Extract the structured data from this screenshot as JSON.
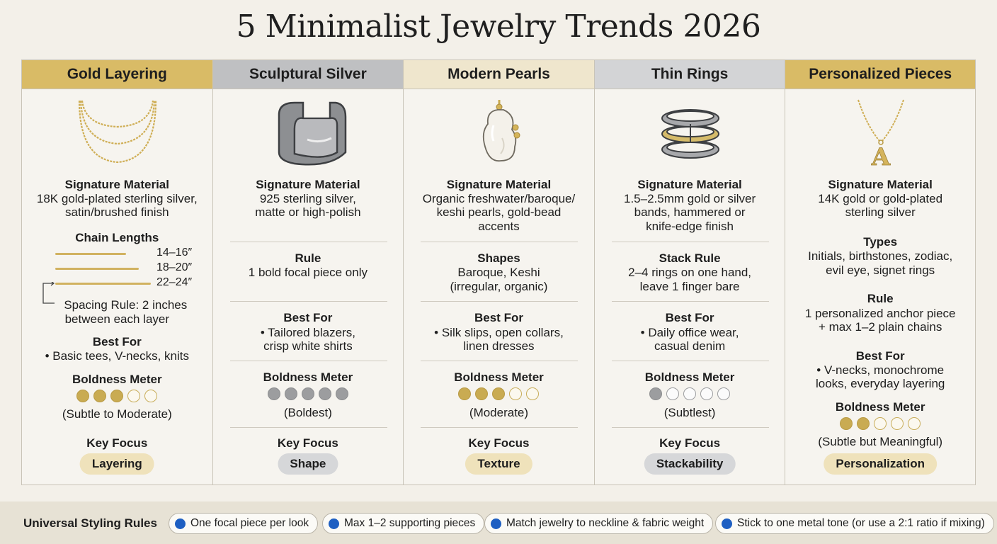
{
  "title": "5 Minimalist Jewelry Trends 2026",
  "columns": [
    {
      "header": "Gold Layering",
      "material_label": "Signature Material",
      "material_lines": [
        "18K gold-plated sterling silver,",
        "satin/brushed finish"
      ],
      "chain_title": "Chain Lengths",
      "chain_lengths": [
        "14–16″",
        "18–20″",
        "22–24″"
      ],
      "spacing_lines": [
        "Spacing Rule: 2 inches",
        "between each layer"
      ],
      "bestfor_label": "Best For",
      "bestfor_lines": [
        "• Basic tees, V-necks, knits"
      ],
      "meter_label": "Boldness Meter",
      "boldness": 3,
      "meter_text": "(Subtle to Moderate)",
      "focus_label": "Key Focus",
      "focus": "Layering"
    },
    {
      "header": "Sculptural Silver",
      "material_label": "Signature Material",
      "material_lines": [
        "925 sterling silver,",
        "matte or high-polish"
      ],
      "rule_label": "Rule",
      "rule_lines": [
        "1 bold focal piece only"
      ],
      "bestfor_label": "Best For",
      "bestfor_lines": [
        "• Tailored blazers,",
        "crisp white shirts"
      ],
      "meter_label": "Boldness Meter",
      "boldness": 5,
      "meter_text": "(Boldest)",
      "focus_label": "Key Focus",
      "focus": "Shape"
    },
    {
      "header": "Modern Pearls",
      "material_label": "Signature Material",
      "material_lines": [
        "Organic freshwater/baroque/",
        "keshi pearls, gold-bead",
        "accents"
      ],
      "rule_label": "Shapes",
      "rule_lines": [
        "Baroque, Keshi",
        "(irregular, organic)"
      ],
      "bestfor_label": "Best For",
      "bestfor_lines": [
        "• Silk slips, open collars,",
        "linen dresses"
      ],
      "meter_label": "Boldness Meter",
      "boldness": 3,
      "meter_text": "(Moderate)",
      "focus_label": "Key Focus",
      "focus": "Texture"
    },
    {
      "header": "Thin Rings",
      "material_label": "Signature Material",
      "material_lines": [
        "1.5–2.5mm gold or silver",
        "bands, hammered or",
        "knife-edge finish"
      ],
      "rule_label": "Stack Rule",
      "rule_lines": [
        "2–4 rings on one hand,",
        "leave 1 finger bare"
      ],
      "bestfor_label": "Best For",
      "bestfor_lines": [
        "• Daily office wear,",
        "casual denim"
      ],
      "meter_label": "Boldness Meter",
      "boldness": 1,
      "meter_text": "(Subtlest)",
      "focus_label": "Key Focus",
      "focus": "Stackability"
    },
    {
      "header": "Personalized Pieces",
      "material_label": "Signature Material",
      "material_lines": [
        "14K gold or gold-plated",
        "sterling silver"
      ],
      "types_label": "Types",
      "types_lines": [
        "Initials, birthstones, zodiac,",
        "evil eye, signet rings"
      ],
      "rule_label": "Rule",
      "rule_lines": [
        "1 personalized anchor piece",
        "+ max 1–2 plain chains"
      ],
      "bestfor_label": "Best For",
      "bestfor_lines": [
        "• V-necks, monochrome",
        "looks, everyday layering"
      ],
      "meter_label": "Boldness Meter",
      "boldness": 2,
      "meter_text": "(Subtle but Meaningful)",
      "focus_label": "Key Focus",
      "focus": "Personalization",
      "pendant_letter": "A"
    }
  ],
  "universal": {
    "label": "Universal Styling Rules",
    "rules": [
      "One focal piece per look",
      "Max 1–2 supporting pieces",
      "Match jewelry to neckline & fabric weight",
      "Stick to one metal tone (or use a 2:1 ratio if mixing)"
    ]
  },
  "colors": {
    "gold": "#d9bb66",
    "silver": "#bfc0c2",
    "cream": "#efe6cd",
    "blue_dot": "#1e5fc2"
  },
  "icons": [
    "layered-necklace-icon",
    "silver-cuff-icon",
    "baroque-pearl-icon",
    "stacked-rings-icon",
    "initial-pendant-icon"
  ]
}
